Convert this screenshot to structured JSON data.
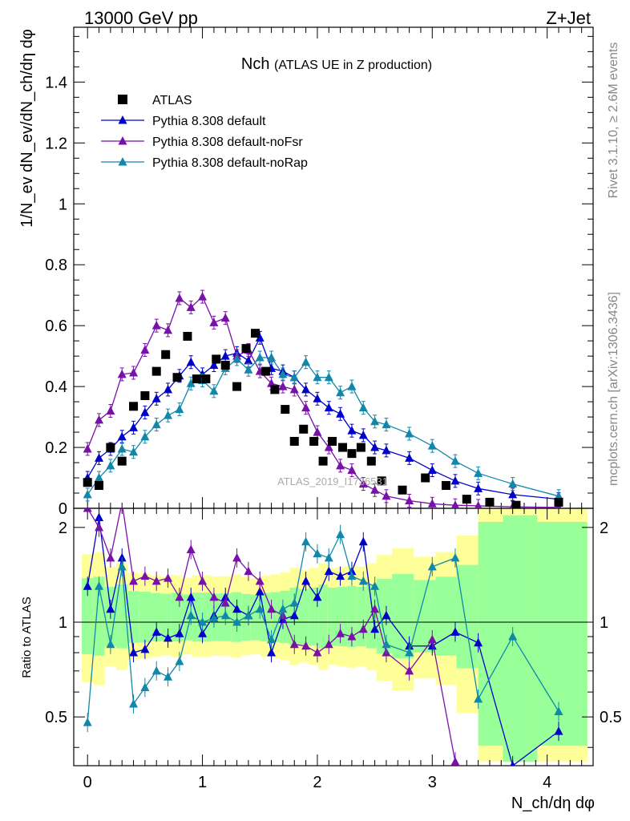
{
  "header": {
    "left": "13000 GeV pp",
    "right": "Z+Jet",
    "rivet": "Rivet 3.1.10, ≥ 2.6M events",
    "mcplots": "mcplots.cern.ch [arXiv:1306.3436]",
    "watermark": "ATLAS_2019_I1736531"
  },
  "chart_data": {
    "type": "scatter",
    "title": "Nch",
    "subtitle": "(ATLAS UE in Z production)",
    "xlabel": "N_ch/dη dφ",
    "ylabel": "1/N_ev dN_ev/dN_ch/dη dφ",
    "ratio_ylabel": "Ratio to ATLAS",
    "xlim": [
      -0.12,
      4.4
    ],
    "ylim": [
      0,
      1.58
    ],
    "ratio_ylim": [
      0.35,
      2.3
    ],
    "x_ticks": [
      "0",
      "1",
      "2",
      "3",
      "4"
    ],
    "y_ticks": [
      "0",
      "0.2",
      "0.4",
      "0.6",
      "0.8",
      "1",
      "1.2",
      "1.4"
    ],
    "ratio_ticks": [
      "0.5",
      "1",
      "2"
    ],
    "legend": [
      "ATLAS",
      "Pythia 8.308 default",
      "Pythia 8.308 default-noFsr",
      "Pythia 8.308 default-noRap"
    ],
    "colors": {
      "atlas": "#000000",
      "default": "#0000cc",
      "noFsr": "#7711aa",
      "noRap": "#1188aa",
      "band_stat": "#99ff99",
      "band_total": "#ffff99"
    },
    "x": [
      0.0,
      0.1,
      0.2,
      0.3,
      0.4,
      0.5,
      0.6,
      0.7,
      0.8,
      0.9,
      1.0,
      1.1,
      1.2,
      1.3,
      1.4,
      1.5,
      1.6,
      1.7,
      1.8,
      1.9,
      2.0,
      2.1,
      2.2,
      2.3,
      2.4,
      2.5,
      2.6,
      2.8,
      3.0,
      3.2,
      3.4,
      3.7,
      4.1
    ],
    "atlas_x": [
      0.0,
      0.1,
      0.2,
      0.3,
      0.4,
      0.5,
      0.6,
      0.68,
      0.78,
      0.87,
      0.95,
      1.03,
      1.12,
      1.2,
      1.3,
      1.38,
      1.46,
      1.55,
      1.63,
      1.72,
      1.8,
      1.88,
      1.97,
      2.05,
      2.13,
      2.22,
      2.3,
      2.38,
      2.47,
      2.56,
      2.74,
      2.94,
      3.12,
      3.3,
      3.5,
      3.73,
      4.1
    ],
    "atlas": [
      0.085,
      0.075,
      0.2,
      0.155,
      0.335,
      0.37,
      0.45,
      0.505,
      0.43,
      0.565,
      0.425,
      0.425,
      0.49,
      0.47,
      0.4,
      0.525,
      0.575,
      0.45,
      0.39,
      0.325,
      0.22,
      0.26,
      0.22,
      0.155,
      0.22,
      0.2,
      0.18,
      0.2,
      0.155,
      0.09,
      0.06,
      0.1,
      0.075,
      0.03,
      0.02,
      0.01,
      0.02
    ],
    "series": [
      {
        "name": "Pythia 8.308 default",
        "key": "default",
        "values": [
          0.1,
          0.165,
          0.195,
          0.235,
          0.265,
          0.315,
          0.36,
          0.39,
          0.435,
          0.48,
          0.44,
          0.47,
          0.5,
          0.51,
          0.485,
          0.56,
          0.46,
          0.45,
          0.43,
          0.39,
          0.36,
          0.33,
          0.31,
          0.255,
          0.24,
          0.2,
          0.19,
          0.165,
          0.125,
          0.09,
          0.065,
          0.045,
          0.03
        ],
        "ratio": [
          1.3,
          2.15,
          1.1,
          1.6,
          0.8,
          0.82,
          0.93,
          0.89,
          0.92,
          1.2,
          0.92,
          1.05,
          1.2,
          1.1,
          1.05,
          1.25,
          0.8,
          1.02,
          1.05,
          1.35,
          1.2,
          1.45,
          1.4,
          1.45,
          1.8,
          0.95,
          1.05,
          0.84,
          0.84,
          0.93,
          0.86,
          0.35,
          0.45
        ]
      },
      {
        "name": "Pythia 8.308 default-noFsr",
        "key": "noFsr",
        "values": [
          0.195,
          0.29,
          0.32,
          0.44,
          0.445,
          0.52,
          0.6,
          0.585,
          0.69,
          0.66,
          0.695,
          0.61,
          0.625,
          0.5,
          0.52,
          0.45,
          0.41,
          0.4,
          0.39,
          0.33,
          0.25,
          0.2,
          0.14,
          0.125,
          0.08,
          0.06,
          0.04,
          0.025,
          0.015,
          0.01,
          0.008,
          0.005,
          0.003
        ],
        "ratio": [
          2.3,
          2.0,
          1.6,
          2.4,
          1.35,
          1.4,
          1.35,
          1.38,
          1.2,
          1.7,
          1.35,
          1.2,
          1.15,
          1.6,
          1.45,
          1.35,
          1.1,
          1.05,
          0.85,
          0.84,
          0.8,
          0.85,
          0.92,
          0.9,
          0.95,
          1.1,
          0.8,
          0.7,
          0.88,
          0.36,
          0.3,
          0.2,
          0.2
        ]
      },
      {
        "name": "Pythia 8.308 default-noRap",
        "key": "noRap",
        "values": [
          0.045,
          0.1,
          0.14,
          0.195,
          0.185,
          0.235,
          0.275,
          0.305,
          0.325,
          0.41,
          0.42,
          0.385,
          0.46,
          0.49,
          0.455,
          0.495,
          0.495,
          0.44,
          0.43,
          0.48,
          0.43,
          0.43,
          0.38,
          0.4,
          0.33,
          0.285,
          0.275,
          0.245,
          0.205,
          0.155,
          0.115,
          0.08,
          0.04
        ],
        "ratio": [
          0.48,
          1.3,
          0.85,
          1.5,
          0.55,
          0.62,
          0.7,
          0.67,
          0.75,
          1.05,
          1.0,
          1.03,
          1.05,
          1.0,
          1.05,
          1.1,
          0.88,
          1.1,
          1.15,
          1.8,
          1.65,
          1.6,
          1.9,
          1.4,
          1.35,
          1.3,
          0.85,
          0.8,
          1.5,
          1.6,
          0.57,
          0.9,
          0.52
        ]
      }
    ]
  }
}
